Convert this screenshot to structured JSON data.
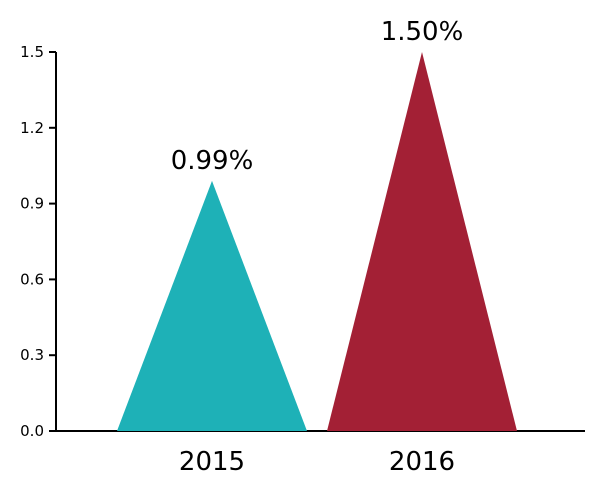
{
  "chart_data": {
    "type": "bar",
    "categories": [
      "2015",
      "2016"
    ],
    "values": [
      0.99,
      1.5
    ],
    "data_labels": [
      "0.99%",
      "1.50%"
    ],
    "colors": [
      "#1eb1b7",
      "#a32035"
    ],
    "y_ticks": [
      "0.0",
      "0.3",
      "0.6",
      "0.9",
      "1.2",
      "1.5"
    ],
    "y_tick_values": [
      0,
      0.3,
      0.6,
      0.9,
      1.2,
      1.5
    ],
    "ylim": [
      0,
      1.5
    ],
    "grid": false,
    "title": "",
    "xlabel": "",
    "ylabel": ""
  }
}
